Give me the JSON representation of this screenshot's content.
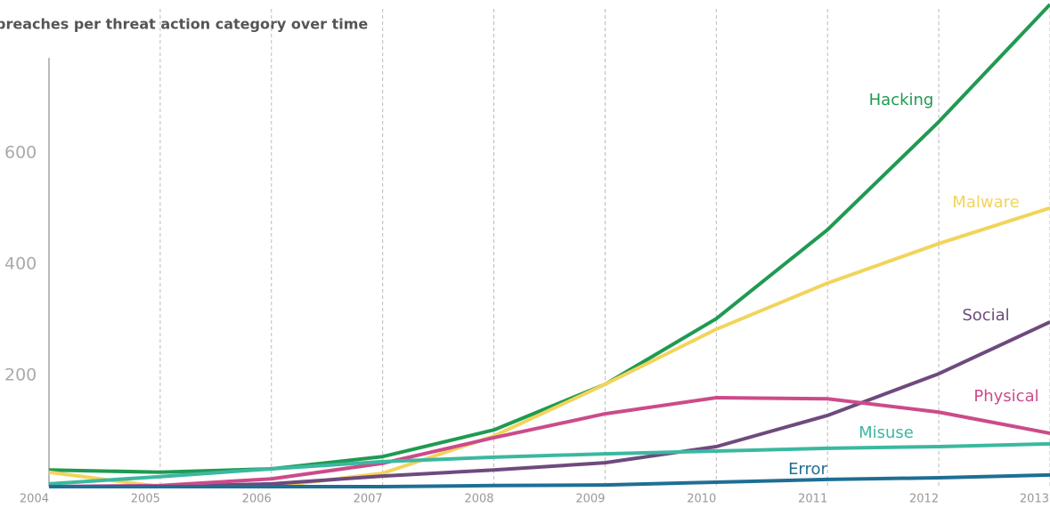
{
  "chart_data": {
    "type": "line",
    "title": "breaches per threat action category over time",
    "x": [
      2004,
      2005,
      2006,
      2007,
      2008,
      2009,
      2010,
      2011,
      2012,
      2013
    ],
    "xlim": [
      2004,
      2013
    ],
    "ylim": [
      0,
      875
    ],
    "yticks": [
      200,
      400,
      600
    ],
    "grid": true,
    "series": [
      {
        "name": "Hacking",
        "color": "#1f9a52",
        "values": [
          30,
          26,
          32,
          54,
          102,
          184,
          302,
          462,
          656,
          867
        ]
      },
      {
        "name": "Malware",
        "color": "#f2d45c",
        "values": [
          26,
          0,
          0,
          24,
          91,
          184,
          283,
          366,
          437,
          501
        ]
      },
      {
        "name": "Social",
        "color": "#6e4a7e",
        "values": [
          0,
          0,
          5,
          19,
          30,
          43,
          72,
          128,
          203,
          296
        ]
      },
      {
        "name": "Physical",
        "color": "#cc4b8a",
        "values": [
          0,
          2,
          14,
          42,
          88,
          131,
          160,
          158,
          134,
          96
        ]
      },
      {
        "name": "Misuse",
        "color": "#3bb8a0",
        "values": [
          5,
          18,
          32,
          45,
          53,
          59,
          64,
          69,
          72,
          77
        ]
      },
      {
        "name": "Error",
        "color": "#1f6e94",
        "values": [
          0,
          0,
          0,
          0,
          2,
          3,
          8,
          13,
          16,
          21
        ]
      }
    ]
  }
}
